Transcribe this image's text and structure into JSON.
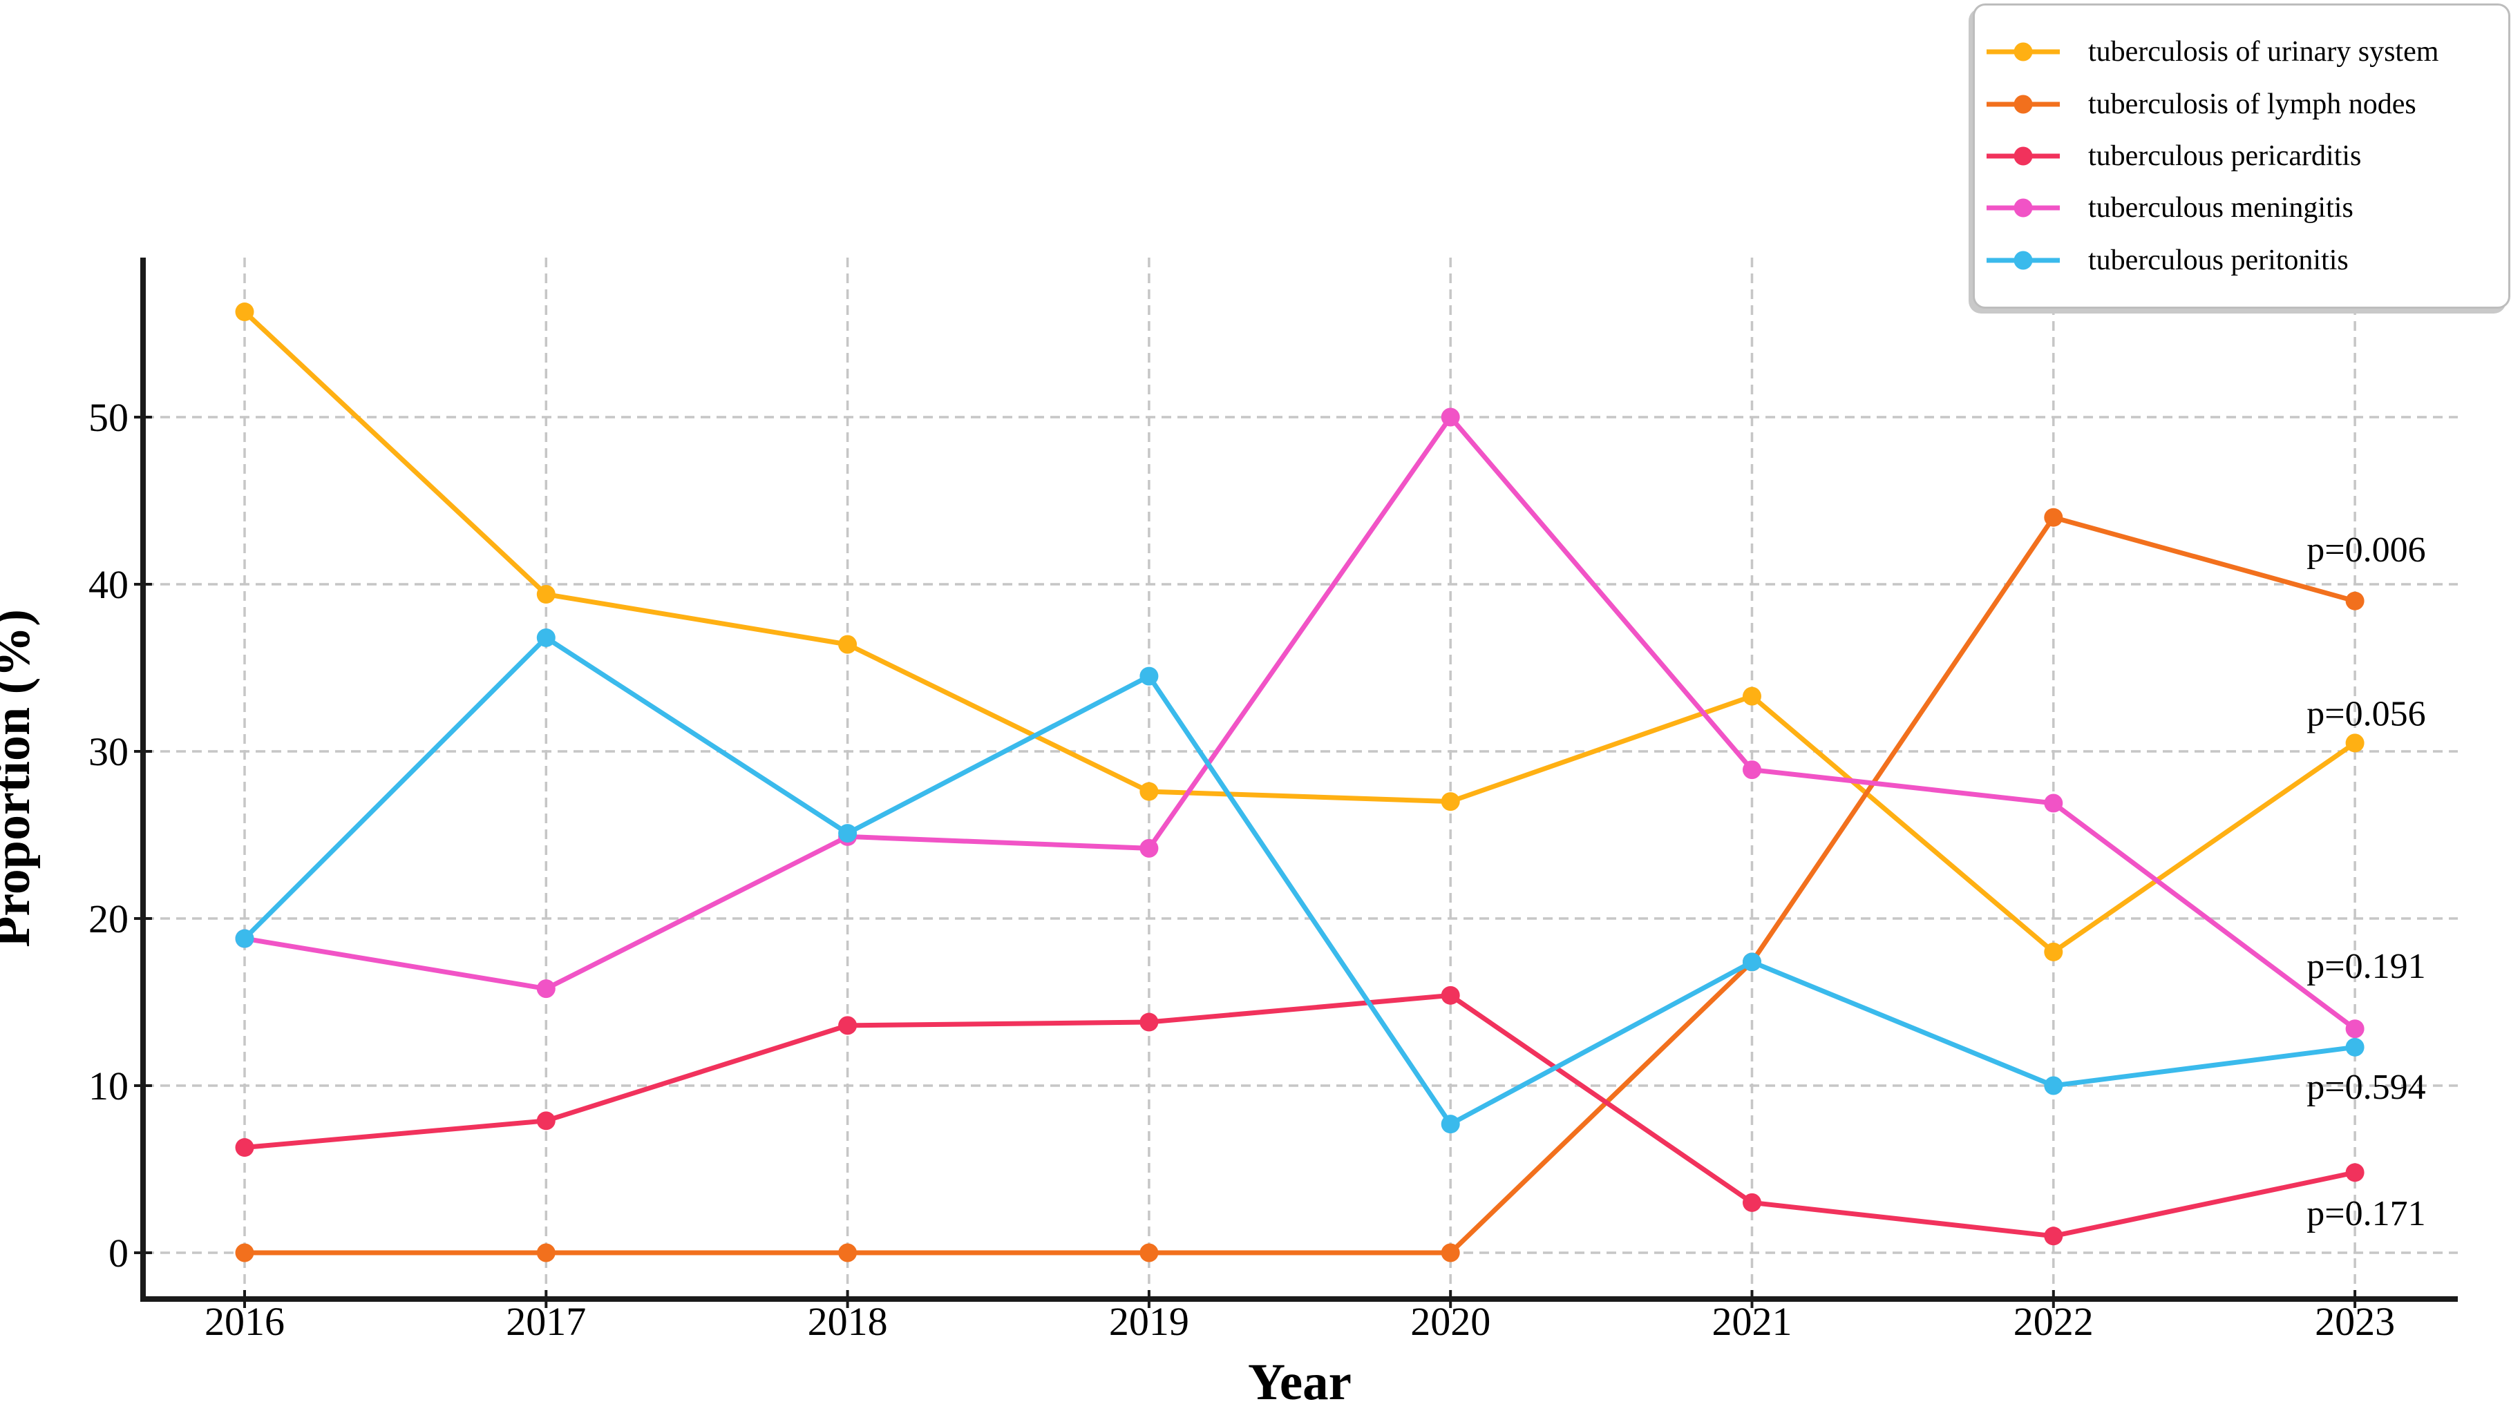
{
  "chart_data": {
    "type": "line",
    "title": "",
    "xlabel": "Year",
    "ylabel": "Proportion (%)",
    "x": [
      2016,
      2017,
      2018,
      2019,
      2020,
      2021,
      2022,
      2023
    ],
    "xtick_labels": [
      "2016",
      "2017",
      "2018",
      "2019",
      "2020",
      "2021",
      "2022",
      "2023"
    ],
    "yticks": [
      0,
      10,
      20,
      30,
      40,
      50
    ],
    "ytick_labels": [
      "0",
      "10",
      "20",
      "30",
      "40",
      "50"
    ],
    "ylim": [
      -2.8,
      59.6
    ],
    "grid": true,
    "legend_position": "top-right",
    "grid_color": "#c6c6c6",
    "axis_color": "#1a1a1a",
    "series": [
      {
        "label": "tuberculosis of urinary system",
        "color": "#FFB013",
        "values": [
          56.3,
          39.4,
          36.4,
          27.6,
          27.0,
          33.3,
          18.0,
          30.5
        ],
        "p_value_text": "p=0.056"
      },
      {
        "label": "tuberculosis of lymph nodes",
        "color": "#F2701D",
        "values": [
          0,
          0,
          0,
          0,
          0,
          17.4,
          44.0,
          39.0
        ],
        "p_value_text": "p=0.006"
      },
      {
        "label": "tuberculous pericarditis",
        "color": "#F1325C",
        "values": [
          6.3,
          7.9,
          13.6,
          13.8,
          15.4,
          3.0,
          1.0,
          4.8
        ],
        "p_value_text": "p=0.171"
      },
      {
        "label": "tuberculous meningitis",
        "color": "#F153C6",
        "values": [
          18.8,
          15.8,
          24.9,
          24.2,
          50.0,
          28.9,
          26.9,
          13.4
        ],
        "p_value_text": "p=0.191"
      },
      {
        "label": "tuberculous peritonitis",
        "color": "#3ABAEC",
        "values": [
          18.8,
          36.8,
          25.1,
          34.5,
          7.7,
          17.4,
          10.0,
          12.3
        ],
        "p_value_text": "p=0.594"
      }
    ],
    "annotations": [
      {
        "text": "p=0.006",
        "series": "tuberculosis of lymph nodes",
        "x": 2022.84,
        "y": 42.1
      },
      {
        "text": "p=0.056",
        "series": "tuberculosis of urinary system",
        "x": 2022.84,
        "y": 32.3
      },
      {
        "text": "p=0.191",
        "series": "tuberculous meningitis",
        "x": 2022.84,
        "y": 17.2
      },
      {
        "text": "p=0.594",
        "series": "tuberculous peritonitis",
        "x": 2022.84,
        "y": 9.95
      },
      {
        "text": "p=0.171",
        "series": "tuberculous pericarditis",
        "x": 2022.84,
        "y": 2.4
      }
    ]
  }
}
